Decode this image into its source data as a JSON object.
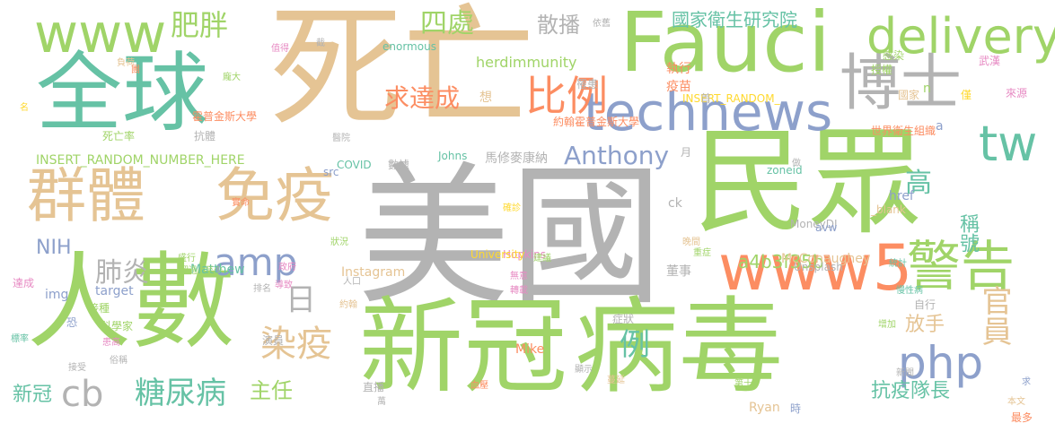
{
  "palette": {
    "green": "#a0d468",
    "teal": "#66c2a5",
    "orange": "#fc8d62",
    "blue": "#8da0cb",
    "pink": "#e78ac3",
    "yellow": "#ffd92f",
    "tan": "#e5c494",
    "gray": "#b3b3b3"
  },
  "words": [
    {
      "text": "美國",
      "color": "gray"
    },
    {
      "text": "新冠",
      "color": "green"
    },
    {
      "text": "病毒",
      "color": "green"
    },
    {
      "text": "死亡",
      "color": "tan"
    },
    {
      "text": "全球",
      "color": "teal"
    },
    {
      "text": "人數",
      "color": "green"
    },
    {
      "text": "民眾",
      "color": "green"
    },
    {
      "text": "Fauci",
      "color": "green"
    },
    {
      "text": "technews",
      "color": "blue"
    },
    {
      "text": "www",
      "color": "green"
    },
    {
      "text": "群體",
      "color": "tan"
    },
    {
      "text": "免疫",
      "color": "tan"
    },
    {
      "text": "www5",
      "color": "orange"
    },
    {
      "text": "警告",
      "color": "green"
    },
    {
      "text": "博士",
      "color": "gray"
    },
    {
      "text": "delivery",
      "color": "green"
    },
    {
      "text": "tw",
      "color": "teal"
    },
    {
      "text": "比例",
      "color": "orange"
    },
    {
      "text": "amp",
      "color": "blue"
    },
    {
      "text": "php",
      "color": "blue"
    },
    {
      "text": "cb",
      "color": "gray"
    },
    {
      "text": "糖尿病",
      "color": "teal"
    },
    {
      "text": "染疫",
      "color": "tan"
    },
    {
      "text": "官員",
      "color": "tan"
    },
    {
      "text": "高",
      "color": "teal"
    },
    {
      "text": "肥胖",
      "color": "green"
    },
    {
      "text": "四處",
      "color": "green"
    },
    {
      "text": "散播",
      "color": "gray"
    },
    {
      "text": "國家衛生研究院",
      "color": "teal"
    },
    {
      "text": "Anthony",
      "color": "blue"
    },
    {
      "text": "求達成",
      "color": "orange"
    },
    {
      "text": "herdimmunity",
      "color": "green"
    },
    {
      "text": "肺炎",
      "color": "gray"
    },
    {
      "text": "NIH",
      "color": "blue"
    },
    {
      "text": "日",
      "color": "gray"
    },
    {
      "text": "例",
      "color": "teal"
    },
    {
      "text": "放手",
      "color": "tan"
    },
    {
      "text": "主任",
      "color": "green"
    },
    {
      "text": "抗疫隊長",
      "color": "teal"
    },
    {
      "text": "新冠",
      "color": "teal"
    },
    {
      "text": "稱號",
      "color": "teal"
    },
    {
      "text": "a4b3f35b",
      "color": "green"
    },
    {
      "text": "馬修麥康納",
      "color": "gray"
    },
    {
      "text": "INSERT_RANDOM_NUMBER_HERE",
      "color": "green"
    },
    {
      "text": "INSERT_RANDOM_",
      "color": "yellow"
    },
    {
      "text": "世界衛生組織",
      "color": "orange"
    },
    {
      "text": "約翰霍普金斯大學",
      "color": "orange"
    },
    {
      "text": "霍普金斯大學",
      "color": "orange"
    },
    {
      "text": "enormous",
      "color": "teal"
    },
    {
      "text": "Hopkins",
      "color": "pink"
    },
    {
      "text": "Johns",
      "color": "teal"
    },
    {
      "text": "University",
      "color": "yellow"
    },
    {
      "text": "Instagram",
      "color": "tan"
    },
    {
      "text": "Matthew",
      "color": "teal"
    },
    {
      "text": "McConaughey",
      "color": "tan"
    },
    {
      "text": "MoneyDJ",
      "color": "gray"
    },
    {
      "text": "Unsplash",
      "color": "gray"
    },
    {
      "text": "zoneid",
      "color": "teal"
    },
    {
      "text": "avw",
      "color": "blue"
    },
    {
      "text": "href",
      "color": "blue"
    },
    {
      "text": "_blank",
      "color": "tan"
    },
    {
      "text": "target",
      "color": "blue"
    },
    {
      "text": "src",
      "color": "blue"
    },
    {
      "text": "img",
      "color": "blue"
    },
    {
      "text": "COVID",
      "color": "teal"
    },
    {
      "text": "Mike",
      "color": "orange"
    },
    {
      "text": "Ryan",
      "color": "tan"
    },
    {
      "text": "ck",
      "color": "gray"
    },
    {
      "text": "n",
      "color": "green"
    },
    {
      "text": "a",
      "color": "blue"
    },
    {
      "text": "月",
      "color": "gray"
    },
    {
      "text": "首",
      "color": "gray"
    },
    {
      "text": "想",
      "color": "tan"
    },
    {
      "text": "恐",
      "color": "blue"
    },
    {
      "text": "時",
      "color": "blue"
    },
    {
      "text": "求",
      "color": "blue"
    },
    {
      "text": "名",
      "color": "yellow"
    },
    {
      "text": "萬",
      "color": "gray"
    },
    {
      "text": "執行",
      "color": "orange"
    },
    {
      "text": "疫苗",
      "color": "orange"
    },
    {
      "text": "罹患",
      "color": "gray"
    },
    {
      "text": "感染",
      "color": "green"
    },
    {
      "text": "授權",
      "color": "green"
    },
    {
      "text": "武漢",
      "color": "pink"
    },
    {
      "text": "國家",
      "color": "tan"
    },
    {
      "text": "僅",
      "color": "yellow"
    },
    {
      "text": "來源",
      "color": "pink"
    },
    {
      "text": "依舊",
      "color": "gray"
    },
    {
      "text": "負荷",
      "color": "tan"
    },
    {
      "text": "值得",
      "color": "pink"
    },
    {
      "text": "截",
      "color": "gray"
    },
    {
      "text": "團",
      "color": "orange"
    },
    {
      "text": "龐大",
      "color": "green"
    },
    {
      "text": "死亡率",
      "color": "green"
    },
    {
      "text": "抗體",
      "color": "gray"
    },
    {
      "text": "醫院",
      "color": "gray"
    },
    {
      "text": "數據",
      "color": "gray"
    },
    {
      "text": "做",
      "color": "gray"
    },
    {
      "text": "實命",
      "color": "orange"
    },
    {
      "text": "晚間",
      "color": "tan"
    },
    {
      "text": "確診",
      "color": "yellow"
    },
    {
      "text": "盛行",
      "color": "green"
    },
    {
      "text": "政府",
      "color": "pink"
    },
    {
      "text": "狀況",
      "color": "green"
    },
    {
      "text": "超過",
      "color": "green"
    },
    {
      "text": "至少",
      "color": "green"
    },
    {
      "text": "建議",
      "color": "green"
    },
    {
      "text": "無意",
      "color": "pink"
    },
    {
      "text": "轉載",
      "color": "pink"
    },
    {
      "text": "重症",
      "color": "green"
    },
    {
      "text": "董事",
      "color": "gray"
    },
    {
      "text": "統計",
      "color": "teal"
    },
    {
      "text": "慢性病",
      "color": "teal"
    },
    {
      "text": "達成",
      "color": "pink"
    },
    {
      "text": "排名",
      "color": "gray"
    },
    {
      "text": "導致",
      "color": "pink"
    },
    {
      "text": "人口",
      "color": "gray"
    },
    {
      "text": "接種",
      "color": "green"
    },
    {
      "text": "科學家",
      "color": "green"
    },
    {
      "text": "約翰",
      "color": "tan"
    },
    {
      "text": "演員",
      "color": "gray"
    },
    {
      "text": "症狀",
      "color": "gray"
    },
    {
      "text": "標率",
      "color": "teal"
    },
    {
      "text": "患高",
      "color": "pink"
    },
    {
      "text": "俗稱",
      "color": "gray"
    },
    {
      "text": "接受",
      "color": "gray"
    },
    {
      "text": "直播",
      "color": "gray"
    },
    {
      "text": "血壓",
      "color": "orange"
    },
    {
      "text": "顯示",
      "color": "gray"
    },
    {
      "text": "蔓延",
      "color": "tan"
    },
    {
      "text": "第十",
      "color": "green"
    },
    {
      "text": "自行",
      "color": "gray"
    },
    {
      "text": "增加",
      "color": "green"
    },
    {
      "text": "新聞",
      "color": "gray"
    },
    {
      "text": "本文",
      "color": "tan"
    },
    {
      "text": "最多",
      "color": "orange"
    }
  ]
}
